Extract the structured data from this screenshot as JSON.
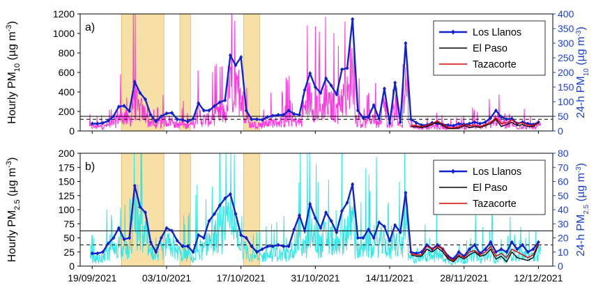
{
  "colors": {
    "hourly_pm10": "#ff33dd",
    "hourly_pm25": "#33e6e6",
    "los_llanos": "#1122cc",
    "el_paso": "#000000",
    "tazacorte": "#dd0000",
    "shade": "#f7e0a6",
    "right_axis": "#1a3fd6"
  },
  "chart_data": [
    {
      "type": "line",
      "panel": "a)",
      "ylabel_prefix": "Hourly PM",
      "ylabel_sub": "10",
      "ylabel_unit_prefix": " (µg m",
      "ylabel_sup": "-3",
      "ylabel_unit_suffix": ")",
      "y2label_prefix": "24-h PM",
      "y2label_sub": "10",
      "y2label_unit_prefix": " (µg m",
      "y2label_sup": "-3",
      "y2label_unit_suffix": ")",
      "ylim": [
        0,
        1200
      ],
      "y2lim": [
        0,
        400
      ],
      "yticks": [
        0,
        200,
        400,
        600,
        800,
        1000,
        1200
      ],
      "y2ticks": [
        0,
        50,
        100,
        150,
        200,
        250,
        300,
        350,
        400
      ],
      "reference_lines": [
        {
          "style": "solid",
          "y2": 50
        },
        {
          "style": "dashed",
          "y2": 40
        }
      ],
      "shaded_intervals_day": [
        [
          5.5,
          13.5
        ],
        [
          16.5,
          18.5
        ],
        [
          28.5,
          31.5
        ]
      ],
      "series": [
        {
          "name": "Los Llanos",
          "x_day": [
            0,
            1,
            2,
            3,
            4,
            5,
            6,
            7,
            8,
            9,
            10,
            11,
            12,
            13,
            14,
            15,
            16,
            17,
            18,
            19,
            20,
            21,
            22,
            23,
            24,
            25,
            26,
            27,
            28,
            29,
            30,
            31,
            32,
            33,
            34,
            35,
            36,
            37,
            38,
            39,
            40,
            41,
            42,
            43,
            44,
            45,
            46,
            47,
            48,
            49,
            50,
            51,
            52,
            53,
            54,
            55,
            56,
            57,
            58,
            59,
            60,
            61,
            62,
            63,
            64,
            65,
            66,
            67,
            68,
            69,
            70,
            71,
            72,
            73,
            74,
            75,
            76,
            77,
            78,
            79,
            80,
            81,
            82,
            83,
            84
          ],
          "values": [
            25,
            25,
            27,
            35,
            50,
            83,
            86,
            68,
            168,
            130,
            108,
            55,
            32,
            50,
            60,
            62,
            40,
            38,
            32,
            42,
            95,
            70,
            70,
            85,
            98,
            105,
            258,
            225,
            252,
            70,
            40,
            40,
            38,
            48,
            52,
            55,
            55,
            70,
            58,
            55,
            140,
            197,
            150,
            130,
            180,
            155,
            125,
            210,
            215,
            382,
            70,
            45,
            48,
            88,
            42,
            145,
            27,
            165,
            30,
            300,
            40,
            28,
            20,
            20,
            28,
            25,
            22,
            20,
            18,
            25,
            22,
            25,
            30,
            25,
            30,
            45,
            70,
            48,
            40,
            42,
            25,
            30,
            25,
            22,
            30
          ]
        },
        {
          "name": "El Paso",
          "x_day": [
            60,
            61,
            62,
            63,
            64,
            65,
            66,
            67,
            68,
            69,
            70,
            71,
            72,
            73,
            74,
            75,
            76,
            77,
            78,
            79,
            80,
            81,
            82,
            83,
            84
          ],
          "values": [
            15,
            14,
            12,
            15,
            22,
            30,
            18,
            8,
            8,
            10,
            18,
            12,
            15,
            12,
            18,
            25,
            40,
            15,
            22,
            30,
            18,
            22,
            15,
            15,
            28
          ]
        },
        {
          "name": "Tazacorte",
          "x_day": [
            60,
            61,
            62,
            63,
            64,
            65,
            66,
            67,
            68,
            69,
            70,
            71,
            72,
            73,
            74,
            75,
            76,
            77,
            78,
            79,
            80,
            81,
            82,
            83,
            84
          ],
          "values": [
            20,
            18,
            15,
            20,
            25,
            35,
            22,
            12,
            10,
            15,
            22,
            18,
            20,
            15,
            22,
            30,
            45,
            25,
            28,
            38,
            25,
            28,
            20,
            18,
            32
          ]
        }
      ]
    },
    {
      "type": "line",
      "panel": "b)",
      "ylabel_prefix": "Hourly PM",
      "ylabel_sub": "2.5",
      "ylabel_unit_prefix": " (µg m",
      "ylabel_sup": "-3",
      "ylabel_unit_suffix": ")",
      "y2label_prefix": "24-h PM",
      "y2label_sub": "2.5",
      "y2label_unit_prefix": " (µg m",
      "y2label_sup": "-3",
      "y2label_unit_suffix": ")",
      "ylim": [
        0,
        200
      ],
      "y2lim": [
        0,
        80
      ],
      "yticks": [
        0,
        25,
        50,
        75,
        100,
        125,
        150,
        175,
        200
      ],
      "y2ticks": [
        0,
        10,
        20,
        30,
        40,
        50,
        60,
        70,
        80
      ],
      "reference_lines": [
        {
          "style": "solid",
          "y2": 25
        },
        {
          "style": "dashed",
          "y2": 15
        }
      ],
      "shaded_intervals_day": [
        [
          5.5,
          13.5
        ],
        [
          16.5,
          18.5
        ],
        [
          28.5,
          31.5
        ]
      ],
      "series": [
        {
          "name": "Los Llanos",
          "x_day": [
            0,
            1,
            2,
            3,
            4,
            5,
            6,
            7,
            8,
            9,
            10,
            11,
            12,
            13,
            14,
            15,
            16,
            17,
            18,
            19,
            20,
            21,
            22,
            23,
            24,
            25,
            26,
            27,
            28,
            29,
            30,
            31,
            32,
            33,
            34,
            35,
            36,
            37,
            38,
            39,
            40,
            41,
            42,
            43,
            44,
            45,
            46,
            47,
            48,
            49,
            50,
            51,
            52,
            53,
            54,
            55,
            56,
            57,
            58,
            59,
            60,
            61,
            62,
            63,
            64,
            65,
            66,
            67,
            68,
            69,
            70,
            71,
            72,
            73,
            74,
            75,
            76,
            77,
            78,
            79,
            80,
            81,
            82,
            83,
            84
          ],
          "values": [
            9,
            9,
            10,
            16,
            20,
            27,
            19,
            20,
            57,
            42,
            38,
            17,
            10,
            20,
            27,
            25,
            18,
            14,
            14,
            10,
            22,
            20,
            32,
            37,
            43,
            48,
            51,
            37,
            22,
            20,
            14,
            10,
            12,
            14,
            14,
            15,
            14,
            14,
            26,
            36,
            25,
            44,
            34,
            27,
            38,
            32,
            24,
            39,
            45,
            58,
            20,
            20,
            26,
            20,
            31,
            28,
            18,
            29,
            24,
            52,
            10,
            9,
            10,
            15,
            12,
            15,
            12,
            7,
            5,
            10,
            7,
            12,
            15,
            9,
            12,
            17,
            10,
            12,
            10,
            17,
            12,
            15,
            10,
            12,
            17
          ]
        },
        {
          "name": "El Paso",
          "x_day": [
            60,
            61,
            62,
            63,
            64,
            65,
            66,
            67,
            68,
            69,
            70,
            71,
            72,
            73,
            74,
            75,
            76,
            77,
            78,
            79,
            80,
            81,
            82,
            83,
            84
          ],
          "values": [
            8,
            7,
            7,
            12,
            10,
            13,
            10,
            5,
            3,
            7,
            5,
            8,
            10,
            7,
            8,
            12,
            5,
            7,
            3,
            10,
            6,
            5,
            4,
            6,
            15
          ]
        },
        {
          "name": "Tazacorte",
          "x_day": [
            60,
            61,
            62,
            63,
            64,
            65,
            66,
            67,
            68,
            69,
            70,
            71,
            72,
            73,
            74,
            75,
            76,
            77,
            78,
            79,
            80,
            81,
            82,
            83,
            84
          ],
          "values": [
            9,
            8,
            8,
            14,
            12,
            14,
            12,
            6,
            4,
            8,
            6,
            10,
            11,
            8,
            10,
            14,
            7,
            9,
            6,
            12,
            10,
            8,
            6,
            8,
            16
          ]
        }
      ]
    }
  ],
  "x_axis": {
    "tick_labels": [
      "19/09/2021",
      "03/10/2021",
      "17/10/2021",
      "31/10/2021",
      "14/11/2021",
      "28/11/2021",
      "12/12/2021"
    ]
  },
  "legend": {
    "entries": [
      "Los Llanos",
      "El Paso",
      "Tazacorte"
    ],
    "placement": "top-right"
  }
}
